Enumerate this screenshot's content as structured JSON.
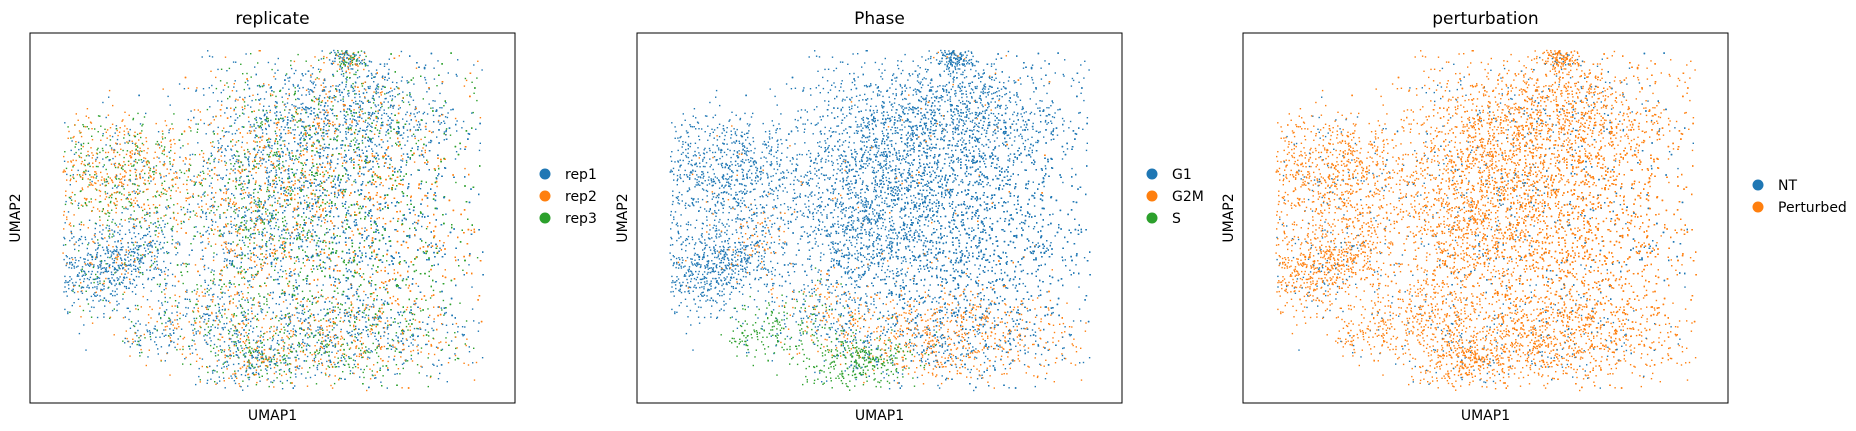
{
  "chart_data": [
    {
      "type": "scatter",
      "title": "replicate",
      "xlabel": "UMAP1",
      "ylabel": "UMAP2",
      "grid": false,
      "legend_position": "right",
      "series": [
        {
          "name": "rep1",
          "color": "#1f77b4"
        },
        {
          "name": "rep2",
          "color": "#ff7f0e"
        },
        {
          "name": "rep3",
          "color": "#2ca02c"
        }
      ]
    },
    {
      "type": "scatter",
      "title": "Phase",
      "xlabel": "UMAP1",
      "ylabel": "UMAP2",
      "grid": false,
      "legend_position": "right",
      "series": [
        {
          "name": "G1",
          "color": "#1f77b4"
        },
        {
          "name": "G2M",
          "color": "#ff7f0e"
        },
        {
          "name": "S",
          "color": "#2ca02c"
        }
      ]
    },
    {
      "type": "scatter",
      "title": "perturbation",
      "xlabel": "UMAP1",
      "ylabel": "UMAP2",
      "grid": false,
      "legend_position": "right",
      "series": [
        {
          "name": "NT",
          "color": "#1f77b4"
        },
        {
          "name": "Perturbed",
          "color": "#ff7f0e"
        }
      ]
    }
  ]
}
